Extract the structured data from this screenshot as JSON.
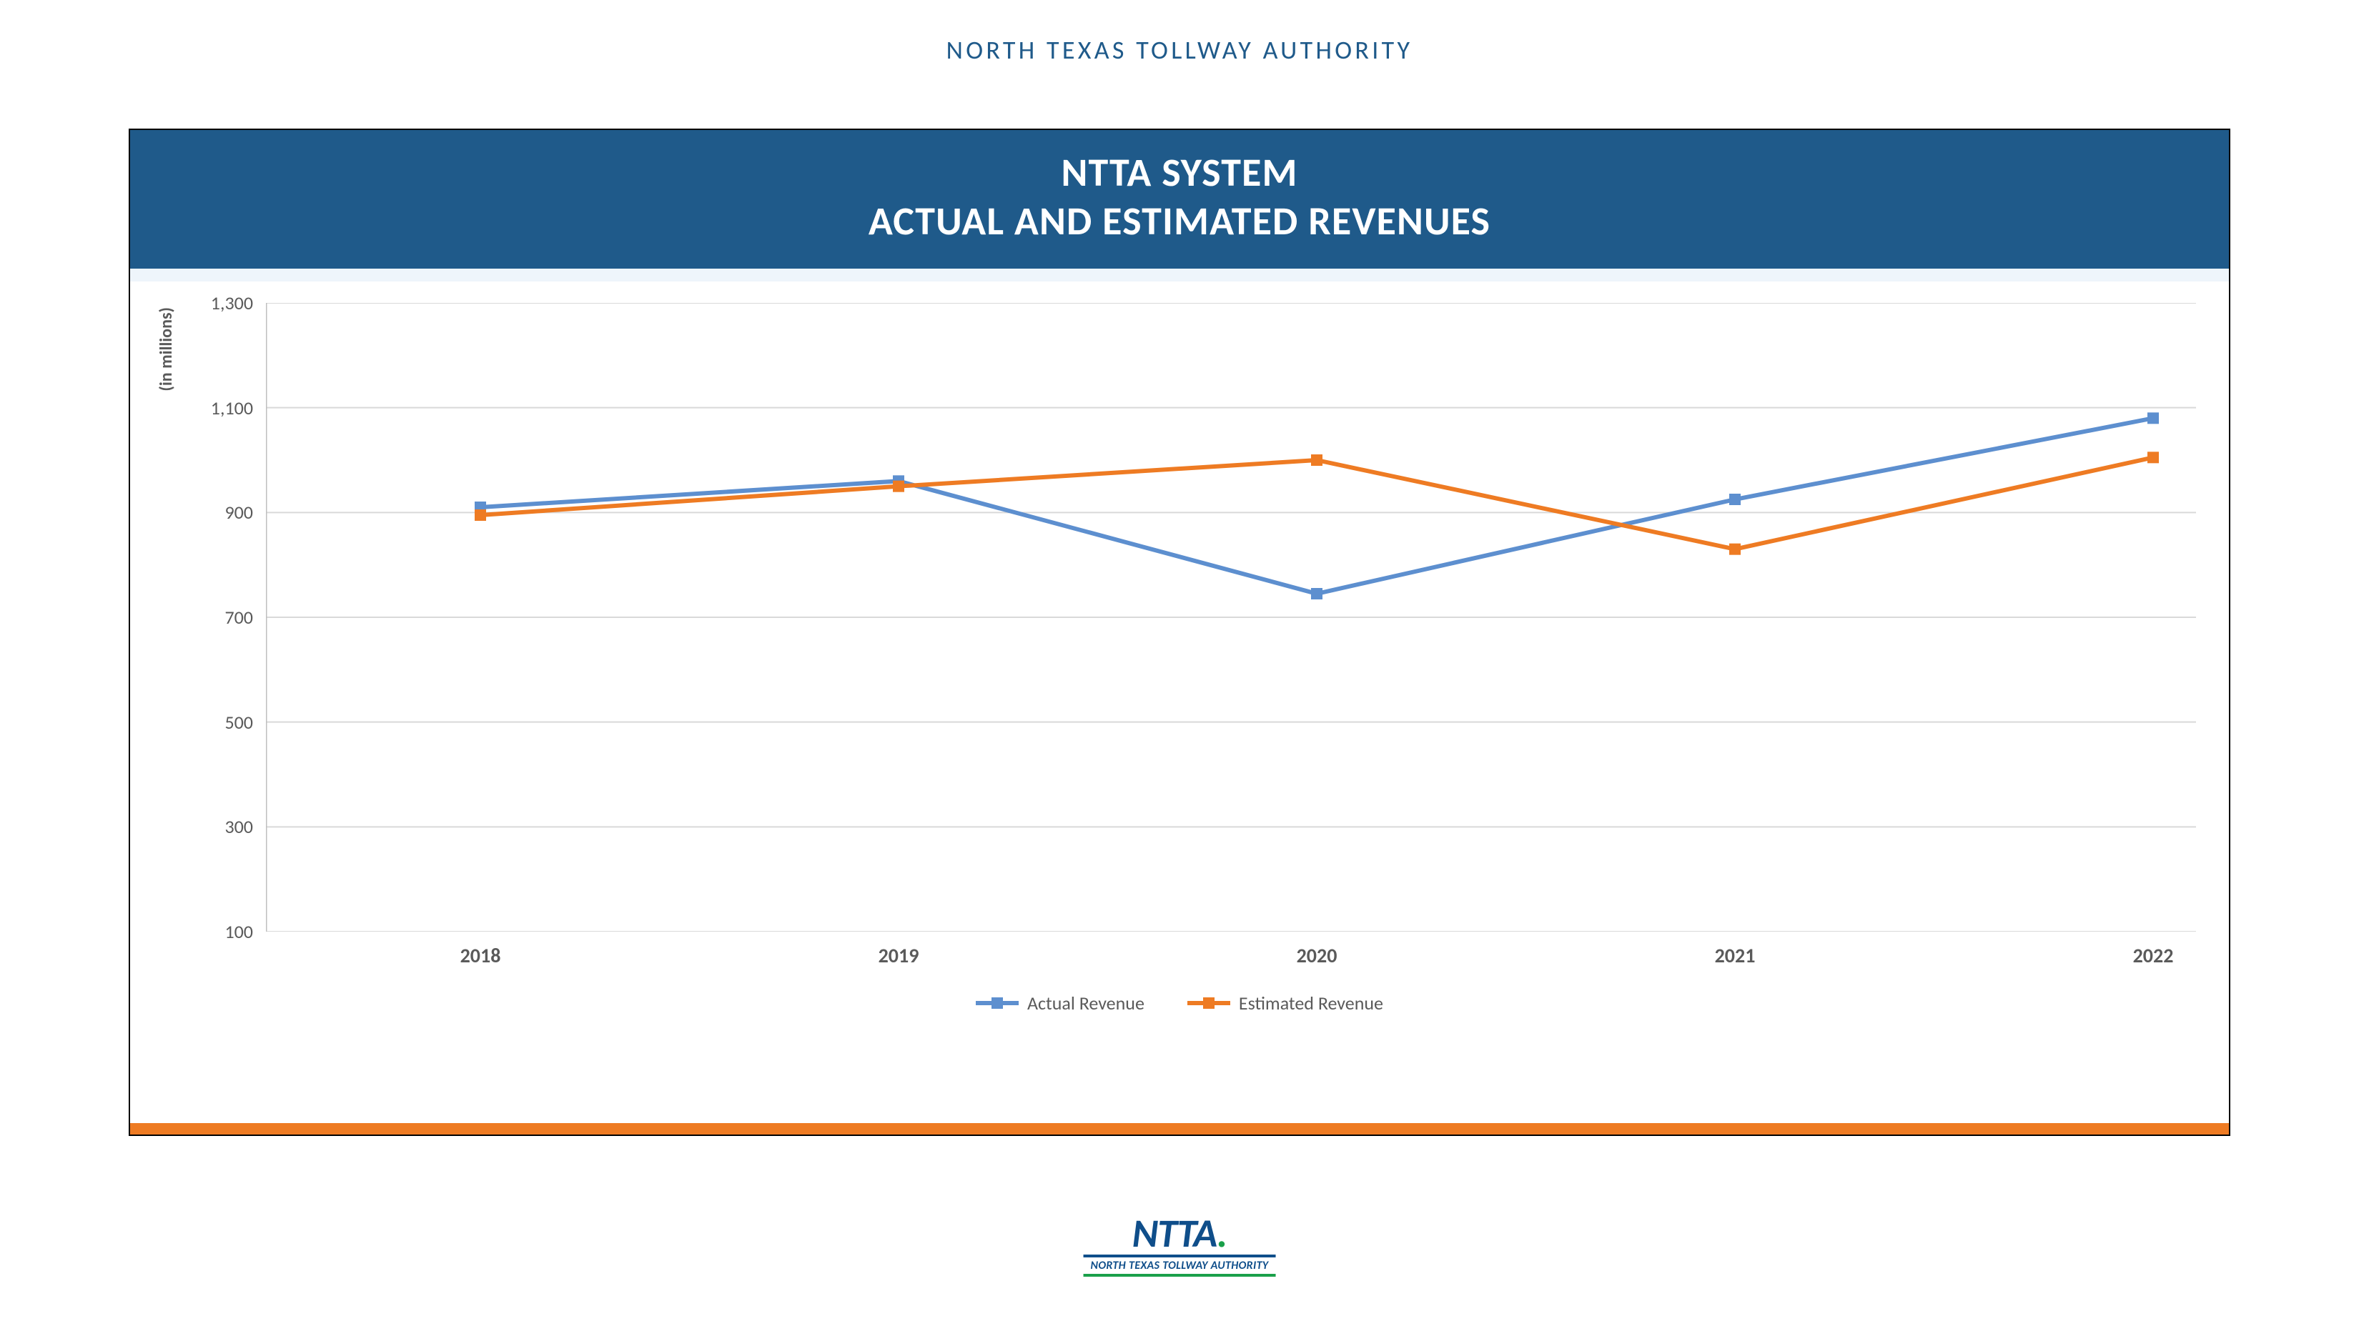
{
  "supertitle": {
    "text": "NORTH TEXAS TOLLWAY AUTHORITY",
    "color": "#1f5a8a",
    "fontsize": 36
  },
  "card": {
    "header_bg": "#1f5a8a",
    "subheader_bg": "#eef5fb",
    "bottom_bar_color": "#ee7b23",
    "title_line1": "NTTA SYSTEM",
    "title_line2": "ACTUAL AND ESTIMATED REVENUES"
  },
  "chart": {
    "type": "line",
    "y_axis_label": "(in millions)",
    "ylim": [
      100,
      1300
    ],
    "ytick_step": 200,
    "yticks": [
      100,
      300,
      500,
      700,
      900,
      1100,
      1300
    ],
    "categories": [
      "2018",
      "2019",
      "2020",
      "2021",
      "2022"
    ],
    "series": [
      {
        "name": "Actual Revenue",
        "color": "#5d8fcf",
        "line_width": 6,
        "marker_size": 16,
        "values": [
          910,
          960,
          745,
          925,
          1080
        ]
      },
      {
        "name": "Estimated Revenue",
        "color": "#ee7b23",
        "line_width": 6,
        "marker_size": 16,
        "values": [
          895,
          950,
          1000,
          830,
          1005
        ]
      }
    ],
    "grid_color": "#d9d9d9",
    "axis_color": "#bfbfbf",
    "tick_label_color": "#5a5a5a",
    "tick_fontsize": 26,
    "xtick_fontsize": 28,
    "legend_fontsize": 26,
    "background_color": "#ffffff"
  },
  "logo": {
    "main": "NTTA",
    "accent": ".",
    "sub": "NORTH TEXAS TOLLWAY AUTHORITY",
    "main_color": "#0f4e8a",
    "accent_color": "#1aa04a"
  }
}
